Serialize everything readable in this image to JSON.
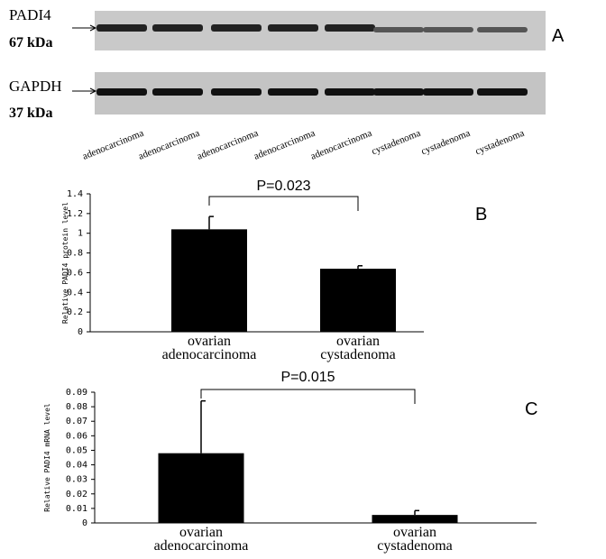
{
  "blot": {
    "panel": "A",
    "bands": [
      {
        "label": "PADI4",
        "size": "67 kDa"
      },
      {
        "label": "GAPDH",
        "size": "37 kDa"
      }
    ],
    "lanes": [
      "adenocarcinoma",
      "adenocarcinoma",
      "adenocarcinoma",
      "adenocarcinoma",
      "adenocarcinoma",
      "cystadenoma",
      "cystadenoma",
      "cystadenoma"
    ]
  },
  "chart_data": [
    {
      "type": "bar",
      "panel": "B",
      "y_label": "Relative PADI4 protein level",
      "categories": [
        "ovarian\nadenocarcinoma",
        "ovarian\ncystadenoma"
      ],
      "values": [
        1.04,
        0.64
      ],
      "errors": [
        0.13,
        0.03
      ],
      "color": "#000000",
      "ylim": [
        0,
        1.4
      ],
      "yticks": [
        0,
        0.2,
        0.4,
        0.6,
        0.8,
        1,
        1.2,
        1.4
      ],
      "annotation": "P=0.023"
    },
    {
      "type": "bar",
      "panel": "C",
      "y_label": "Relative PADI4 mRNA level",
      "categories": [
        "ovarian\nadenocarcinoma",
        "ovarian\ncystadenoma"
      ],
      "values": [
        0.048,
        0.0055
      ],
      "errors": [
        0.036,
        0.003
      ],
      "color": "#000000",
      "ylim": [
        0,
        0.09
      ],
      "yticks": [
        0,
        0.01,
        0.02,
        0.03,
        0.04,
        0.05,
        0.06,
        0.07,
        0.08,
        0.09
      ],
      "annotation": "P=0.015"
    }
  ]
}
